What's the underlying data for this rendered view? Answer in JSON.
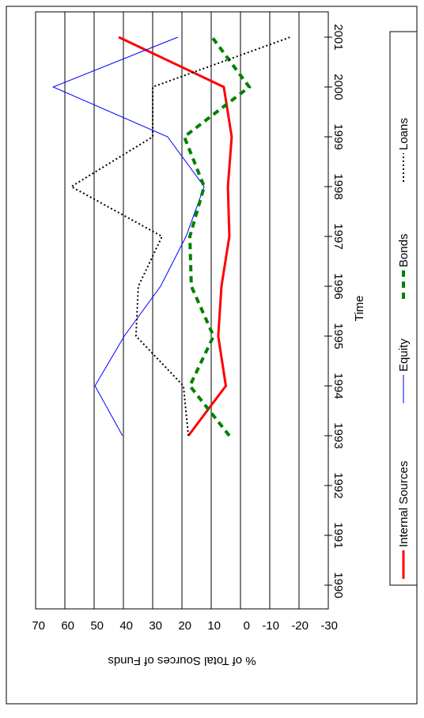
{
  "chart_data": {
    "type": "line",
    "x_label": "Time",
    "y_label": "% of Total Sources of Funds",
    "categories": [
      "1990",
      "1991",
      "1992",
      "1993",
      "1994",
      "1995",
      "1996",
      "1997",
      "1998",
      "1999",
      "2000",
      "2001"
    ],
    "series": [
      {
        "name": "Internal Sources",
        "color": "#ff0000",
        "line_style": "solid",
        "values": [
          null,
          null,
          null,
          17.8,
          5,
          7.6,
          6.5,
          3.8,
          4.3,
          3,
          5.7,
          41.6
        ]
      },
      {
        "name": "Equity",
        "color": "#0000ff",
        "line_style": "thin",
        "values": [
          null,
          null,
          null,
          40.3,
          49.7,
          39.7,
          27.3,
          18.6,
          12.4,
          24.9,
          64,
          21.4
        ]
      },
      {
        "name": "Bonds",
        "color": "#008000",
        "line_style": "dashed",
        "values": [
          null,
          null,
          null,
          3.8,
          17.3,
          9.2,
          16.8,
          17.3,
          12.4,
          19.2,
          -3,
          9.7
        ]
      },
      {
        "name": "Loans",
        "color": "#000000",
        "line_style": "dotted",
        "values": [
          null,
          null,
          null,
          17.8,
          19.5,
          35.7,
          34.9,
          26.8,
          57.8,
          30,
          30,
          -17
        ]
      }
    ],
    "ylim": [
      70,
      -30
    ],
    "yticks": [
      70,
      60,
      50,
      40,
      30,
      20,
      10,
      0,
      -10,
      -20,
      -30
    ],
    "grid": true,
    "legend": "bottom"
  }
}
